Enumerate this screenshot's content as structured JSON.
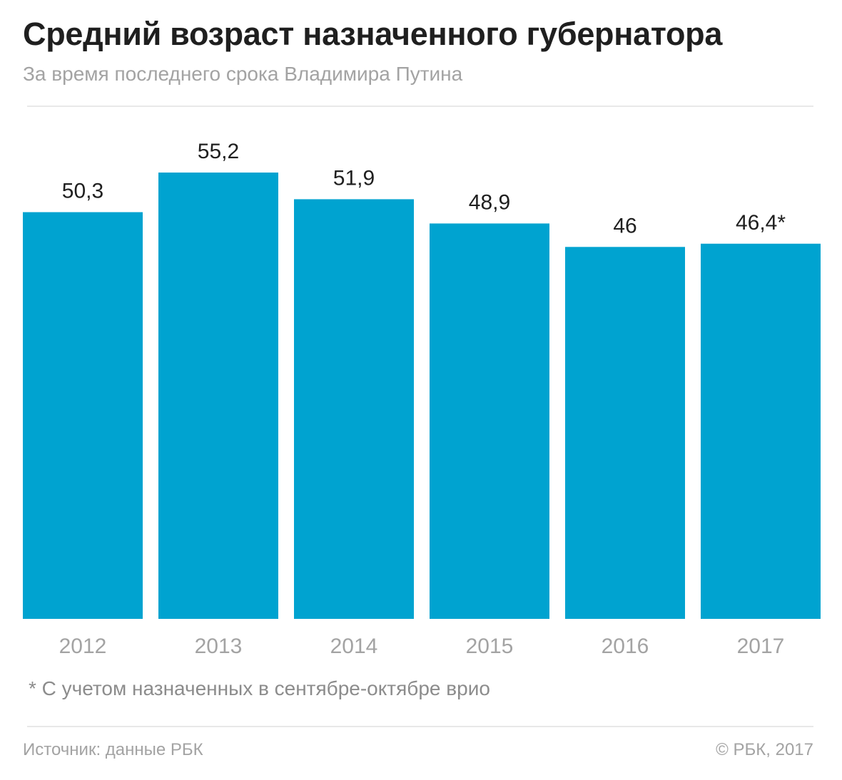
{
  "header": {
    "title": "Средний возраст назначенного губернатора",
    "subtitle": "За время последнего срока Владимира Путина"
  },
  "chart_data": {
    "type": "bar",
    "categories": [
      "2012",
      "2013",
      "2014",
      "2015",
      "2016",
      "2017"
    ],
    "values": [
      50.3,
      55.2,
      51.9,
      48.9,
      46,
      46.4
    ],
    "value_labels": [
      "50,3",
      "55,2",
      "51,9",
      "48,9",
      "46",
      "46,4*"
    ],
    "ylim": [
      0,
      55.2
    ],
    "grid": false,
    "bar_color": "#00a3d0"
  },
  "footnote": "* С учетом назначенных в сентябре-октябре врио",
  "footer": {
    "source": "Источник: данные РБК",
    "copyright": "© РБК, 2017"
  }
}
